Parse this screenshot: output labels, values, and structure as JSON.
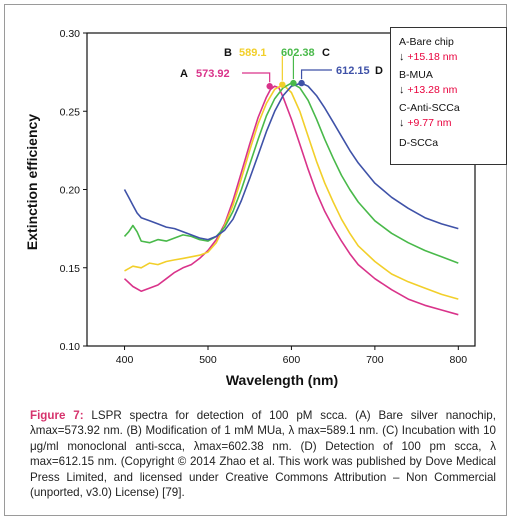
{
  "chart_data": {
    "type": "line",
    "xlabel": "Wavelength (nm)",
    "ylabel": "Extinction efficiency",
    "xlim": [
      355,
      820
    ],
    "ylim": [
      0.1,
      0.3
    ],
    "xticks": [
      "400",
      "500",
      "600",
      "700",
      "800"
    ],
    "yticks": [
      "0.10",
      "0.15",
      "0.20",
      "0.25",
      "0.30"
    ],
    "grid": false,
    "series": [
      {
        "key": "A",
        "color": "#d9338a",
        "peak_label": "573.92",
        "peak_x": 573.92,
        "points": [
          [
            400,
            0.143
          ],
          [
            410,
            0.138
          ],
          [
            420,
            0.135
          ],
          [
            430,
            0.137
          ],
          [
            440,
            0.139
          ],
          [
            450,
            0.143
          ],
          [
            460,
            0.147
          ],
          [
            470,
            0.15
          ],
          [
            480,
            0.152
          ],
          [
            490,
            0.156
          ],
          [
            500,
            0.161
          ],
          [
            510,
            0.168
          ],
          [
            520,
            0.178
          ],
          [
            530,
            0.193
          ],
          [
            540,
            0.211
          ],
          [
            550,
            0.229
          ],
          [
            560,
            0.246
          ],
          [
            570,
            0.259
          ],
          [
            575,
            0.264
          ],
          [
            580,
            0.266
          ],
          [
            585,
            0.265
          ],
          [
            590,
            0.259
          ],
          [
            600,
            0.245
          ],
          [
            610,
            0.229
          ],
          [
            620,
            0.213
          ],
          [
            630,
            0.198
          ],
          [
            640,
            0.186
          ],
          [
            650,
            0.176
          ],
          [
            660,
            0.167
          ],
          [
            670,
            0.159
          ],
          [
            680,
            0.152
          ],
          [
            700,
            0.143
          ],
          [
            720,
            0.136
          ],
          [
            740,
            0.13
          ],
          [
            760,
            0.126
          ],
          [
            780,
            0.123
          ],
          [
            800,
            0.12
          ]
        ]
      },
      {
        "key": "B",
        "color": "#f2cf2a",
        "peak_label": "589.1",
        "peak_x": 589.1,
        "points": [
          [
            400,
            0.148
          ],
          [
            410,
            0.151
          ],
          [
            420,
            0.15
          ],
          [
            430,
            0.153
          ],
          [
            440,
            0.152
          ],
          [
            450,
            0.154
          ],
          [
            460,
            0.155
          ],
          [
            470,
            0.156
          ],
          [
            480,
            0.157
          ],
          [
            490,
            0.158
          ],
          [
            500,
            0.16
          ],
          [
            510,
            0.166
          ],
          [
            520,
            0.177
          ],
          [
            530,
            0.19
          ],
          [
            540,
            0.207
          ],
          [
            550,
            0.225
          ],
          [
            560,
            0.242
          ],
          [
            570,
            0.255
          ],
          [
            580,
            0.264
          ],
          [
            590,
            0.267
          ],
          [
            600,
            0.262
          ],
          [
            610,
            0.25
          ],
          [
            620,
            0.234
          ],
          [
            630,
            0.218
          ],
          [
            640,
            0.204
          ],
          [
            650,
            0.192
          ],
          [
            660,
            0.181
          ],
          [
            670,
            0.172
          ],
          [
            680,
            0.164
          ],
          [
            700,
            0.154
          ],
          [
            720,
            0.146
          ],
          [
            740,
            0.141
          ],
          [
            760,
            0.137
          ],
          [
            780,
            0.133
          ],
          [
            800,
            0.13
          ]
        ]
      },
      {
        "key": "C",
        "color": "#49b94a",
        "peak_label": "602.38",
        "peak_x": 602.38,
        "points": [
          [
            400,
            0.17
          ],
          [
            405,
            0.173
          ],
          [
            410,
            0.177
          ],
          [
            415,
            0.173
          ],
          [
            420,
            0.167
          ],
          [
            430,
            0.166
          ],
          [
            440,
            0.168
          ],
          [
            450,
            0.167
          ],
          [
            460,
            0.169
          ],
          [
            470,
            0.171
          ],
          [
            480,
            0.17
          ],
          [
            490,
            0.168
          ],
          [
            500,
            0.167
          ],
          [
            510,
            0.17
          ],
          [
            520,
            0.176
          ],
          [
            530,
            0.186
          ],
          [
            540,
            0.2
          ],
          [
            550,
            0.216
          ],
          [
            560,
            0.232
          ],
          [
            570,
            0.247
          ],
          [
            580,
            0.258
          ],
          [
            590,
            0.265
          ],
          [
            600,
            0.268
          ],
          [
            610,
            0.265
          ],
          [
            620,
            0.257
          ],
          [
            630,
            0.245
          ],
          [
            640,
            0.232
          ],
          [
            650,
            0.22
          ],
          [
            660,
            0.209
          ],
          [
            670,
            0.2
          ],
          [
            680,
            0.192
          ],
          [
            700,
            0.18
          ],
          [
            720,
            0.172
          ],
          [
            740,
            0.166
          ],
          [
            760,
            0.161
          ],
          [
            780,
            0.157
          ],
          [
            800,
            0.153
          ]
        ]
      },
      {
        "key": "D",
        "color": "#3f52a8",
        "peak_label": "612.15",
        "peak_x": 612.15,
        "points": [
          [
            400,
            0.2
          ],
          [
            405,
            0.195
          ],
          [
            410,
            0.19
          ],
          [
            415,
            0.185
          ],
          [
            420,
            0.182
          ],
          [
            430,
            0.18
          ],
          [
            440,
            0.178
          ],
          [
            450,
            0.176
          ],
          [
            460,
            0.175
          ],
          [
            470,
            0.173
          ],
          [
            480,
            0.171
          ],
          [
            490,
            0.169
          ],
          [
            500,
            0.168
          ],
          [
            510,
            0.17
          ],
          [
            520,
            0.174
          ],
          [
            530,
            0.181
          ],
          [
            540,
            0.193
          ],
          [
            550,
            0.207
          ],
          [
            560,
            0.222
          ],
          [
            570,
            0.237
          ],
          [
            580,
            0.25
          ],
          [
            590,
            0.26
          ],
          [
            600,
            0.266
          ],
          [
            612,
            0.268
          ],
          [
            620,
            0.266
          ],
          [
            630,
            0.26
          ],
          [
            640,
            0.252
          ],
          [
            650,
            0.243
          ],
          [
            660,
            0.234
          ],
          [
            670,
            0.225
          ],
          [
            680,
            0.217
          ],
          [
            700,
            0.204
          ],
          [
            720,
            0.195
          ],
          [
            740,
            0.188
          ],
          [
            760,
            0.182
          ],
          [
            780,
            0.178
          ],
          [
            800,
            0.175
          ]
        ]
      }
    ],
    "legend": {
      "items": [
        {
          "name": "A-Bare chip",
          "shift": "+15.18 nm"
        },
        {
          "name": "B-MUA",
          "shift": "+13.28 nm"
        },
        {
          "name": "C-Anti-SCCa",
          "shift": "+9.77 nm"
        },
        {
          "name": "D-SCCa",
          "shift": ""
        }
      ],
      "arrow": "↓"
    }
  },
  "caption": {
    "label": "Figure 7:",
    "text": " LSPR spectra for detection of 100 pM scca. (A) Bare silver nanochip, λmax=573.92 nm. (B) Modification of 1 mM MUa, λ max=589.1 nm. (C) Incubation with 10 μg/ml monoclonal anti-scca, λmax=602.38 nm. (D) Detection of 100 pm scca, λ max=612.15 nm. (Copyright © 2014 Zhao et al. This work was published by Dove Medical Press Limited, and licensed under Creative Commons Attribution – Non Commercial (unported, v3.0) License) [79]."
  }
}
